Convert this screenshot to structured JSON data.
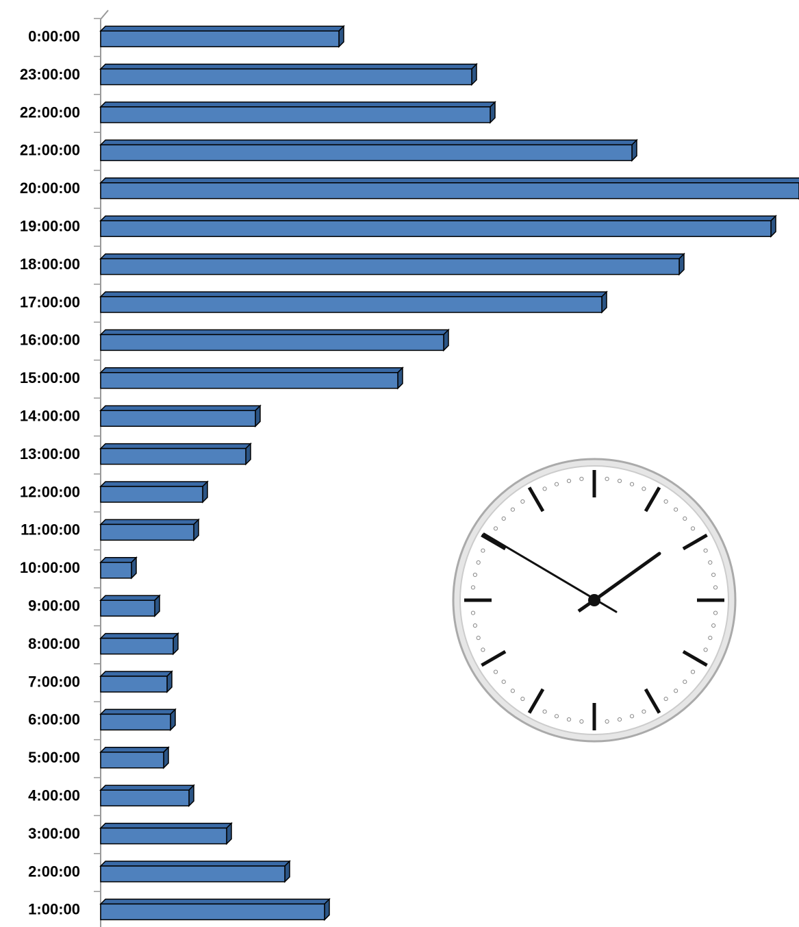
{
  "chart_data": {
    "type": "bar",
    "orientation": "horizontal",
    "categories": [
      "0:00:00",
      "23:00:00",
      "22:00:00",
      "21:00:00",
      "20:00:00",
      "19:00:00",
      "18:00:00",
      "17:00:00",
      "16:00:00",
      "15:00:00",
      "14:00:00",
      "13:00:00",
      "12:00:00",
      "11:00:00",
      "10:00:00",
      "9:00:00",
      "8:00:00",
      "7:00:00",
      "6:00:00",
      "5:00:00",
      "4:00:00",
      "3:00:00",
      "2:00:00",
      "1:00:00"
    ],
    "values": [
      348,
      542,
      569,
      776,
      1020,
      979,
      845,
      732,
      501,
      434,
      226,
      212,
      149,
      136,
      45,
      79,
      106,
      97,
      102,
      92,
      129,
      184,
      269,
      327
    ],
    "color": "#4f81bd",
    "xlim": [
      0,
      1020
    ]
  }
}
